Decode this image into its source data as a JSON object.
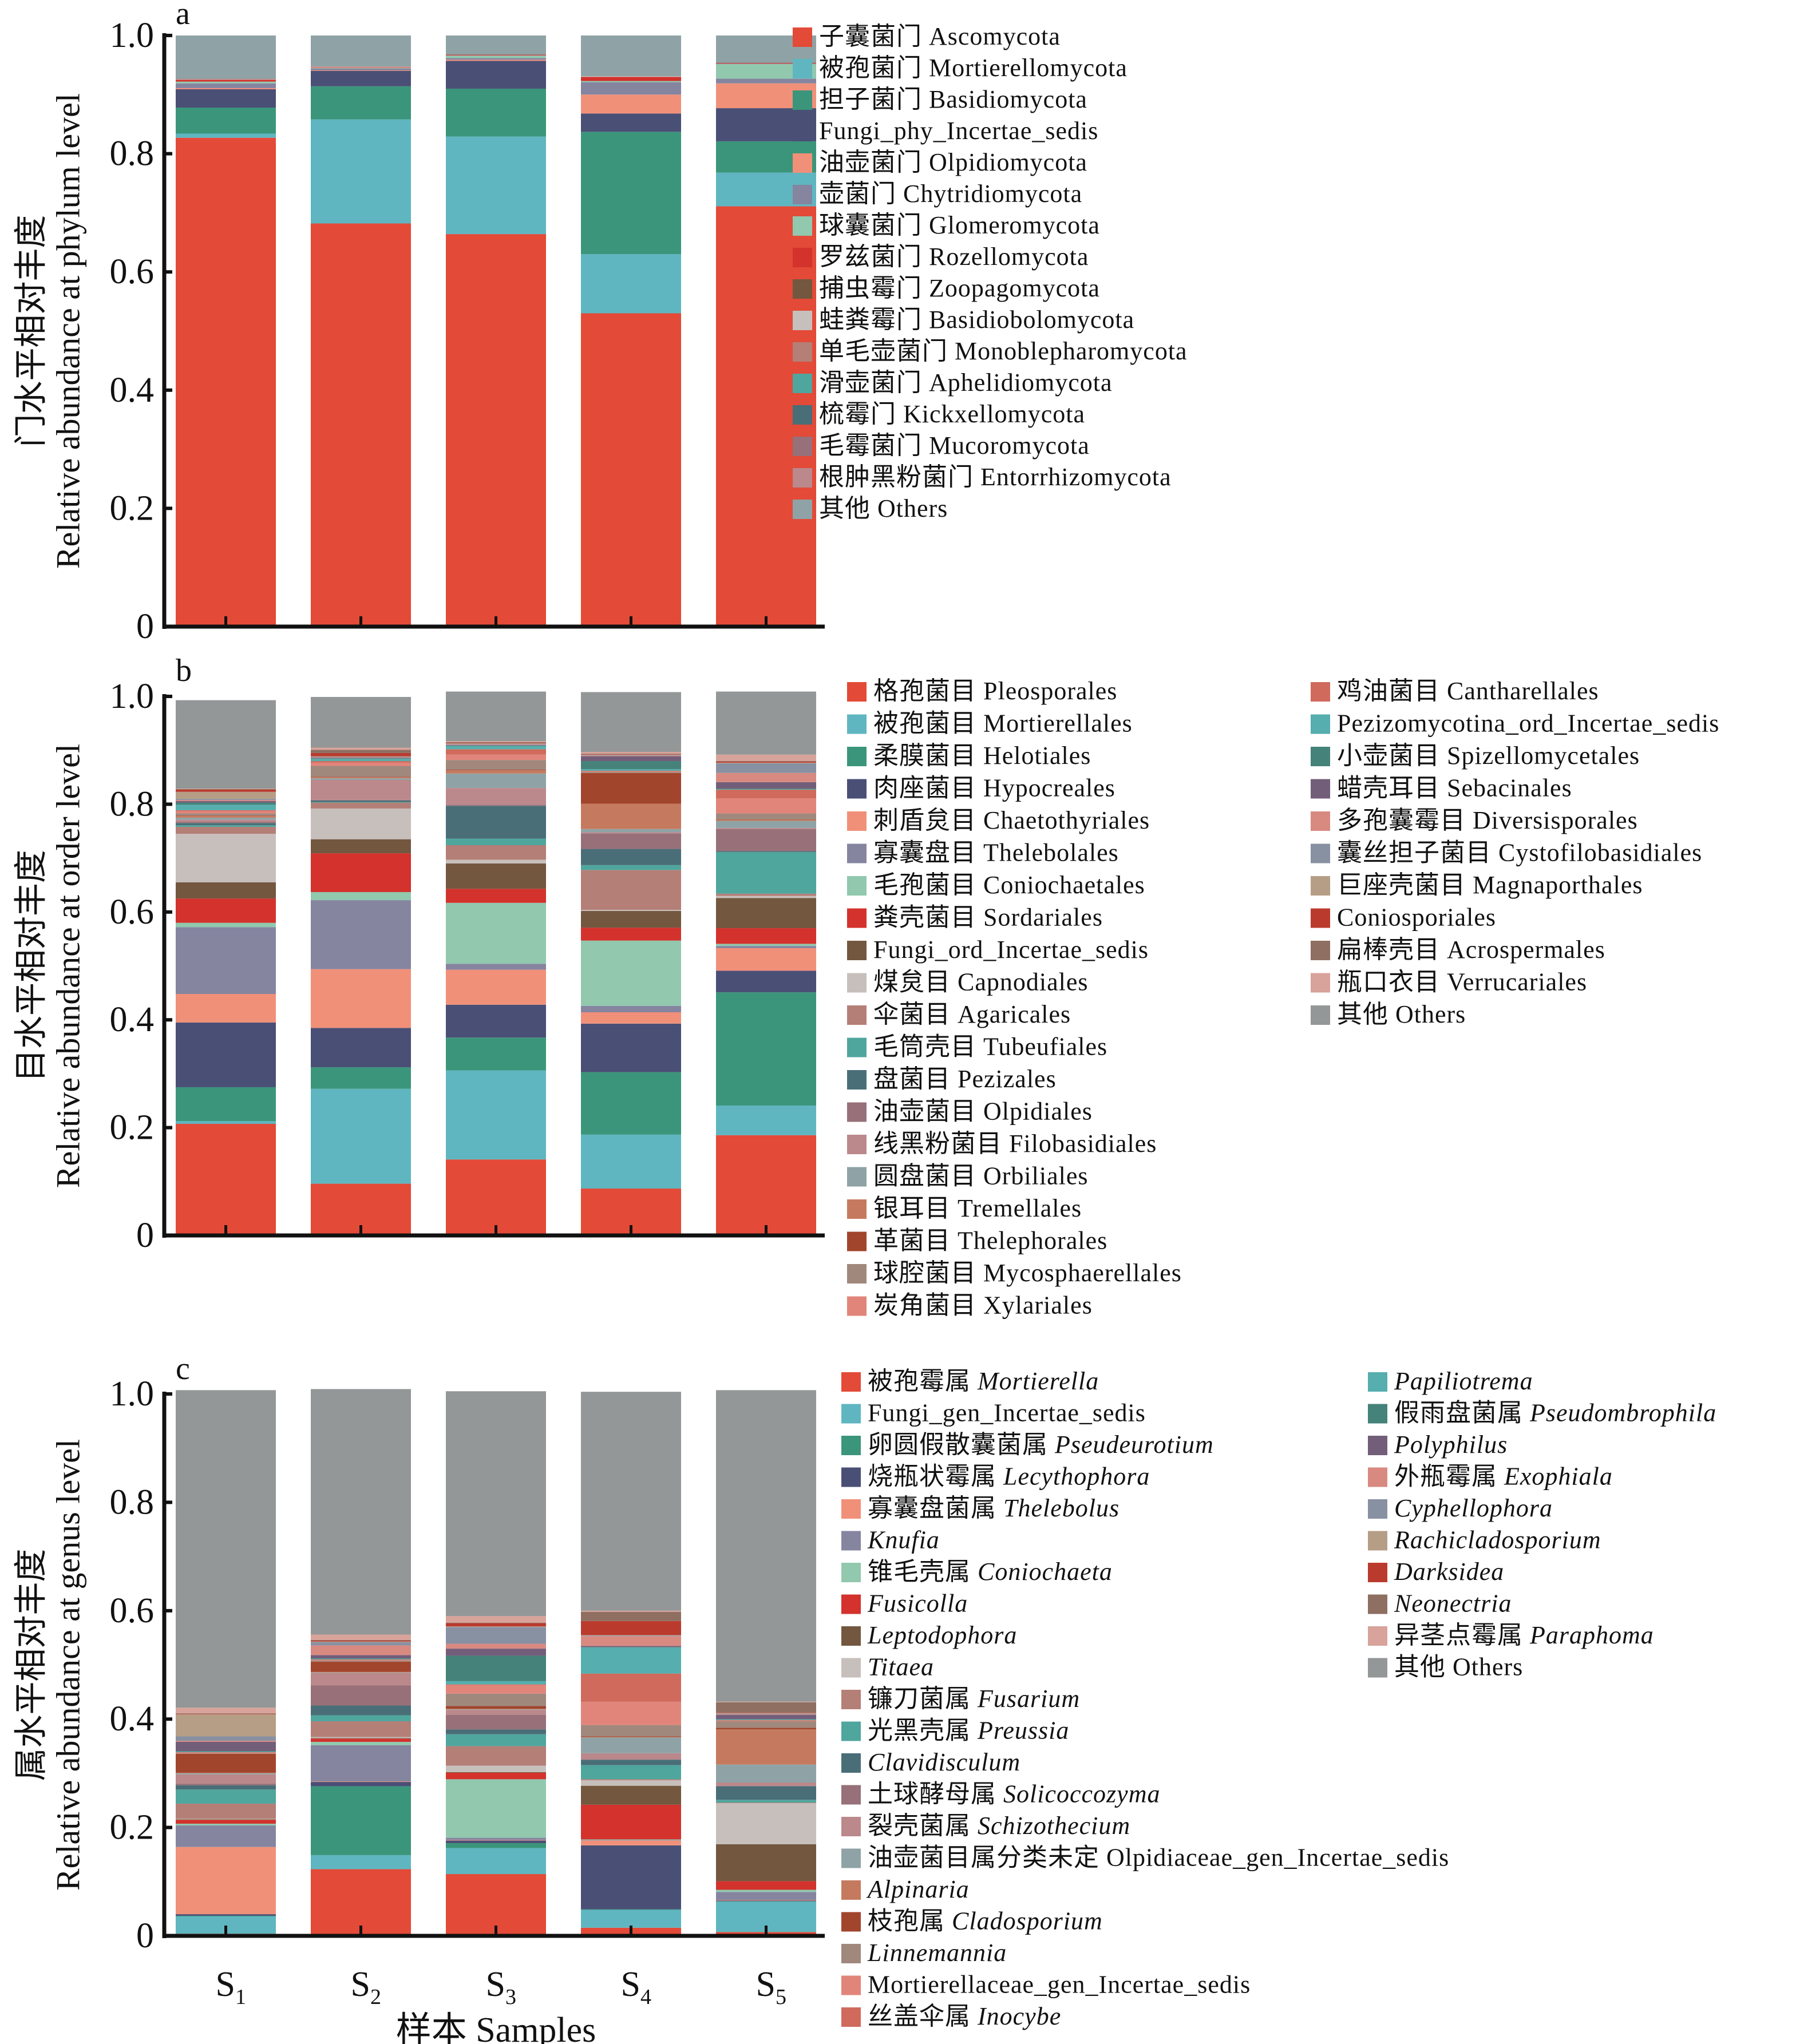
{
  "chart_data": [
    {
      "type": "bar",
      "stacked": true,
      "panel": "a",
      "title": "",
      "xlabel": "",
      "ylabel": [
        "门水平相对丰度",
        "Relative abundance at phylum level"
      ],
      "ylim": [
        0,
        1.0
      ],
      "yticks": [
        "0",
        "0.2",
        "0.4",
        "0.6",
        "0.8",
        "1.0"
      ],
      "categories": [
        "S1",
        "S2",
        "S3",
        "S4",
        "S5"
      ],
      "legend_position": "right",
      "legend_columns": 1,
      "series": [
        {
          "name": "子囊菌门 Ascomycota",
          "color": "#E34A37",
          "values": [
            0.827,
            0.682,
            0.664,
            0.53,
            0.711
          ]
        },
        {
          "name": "被孢菌门 Mortierellomycota",
          "color": "#5FB6C1",
          "values": [
            0.007,
            0.176,
            0.165,
            0.1,
            0.057
          ]
        },
        {
          "name": "担子菌门 Basidiomycota",
          "color": "#3B957A",
          "values": [
            0.044,
            0.056,
            0.081,
            0.207,
            0.053
          ]
        },
        {
          "name": "Fungi_phy_Incertae_sedis",
          "color": "#4A4F76",
          "values": [
            0.031,
            0.026,
            0.047,
            0.031,
            0.056
          ]
        },
        {
          "name": "油壶菌门 Olpidiomycota",
          "color": "#F19079",
          "values": [
            0.002,
            0.001,
            0.002,
            0.032,
            0.042
          ]
        },
        {
          "name": "壶菌门 Chytridiomycota",
          "color": "#8585A0",
          "values": [
            0.008,
            0.003,
            0.003,
            0.021,
            0.008
          ]
        },
        {
          "name": "球囊菌门 Glomeromycota",
          "color": "#91C8AE",
          "values": [
            0.003,
            0.001,
            0.004,
            0.002,
            0.025
          ]
        },
        {
          "name": "罗兹菌门 Rozellomycota",
          "color": "#D3322D",
          "values": [
            0.003,
            0.001,
            0.001,
            0.007,
            0.001
          ]
        },
        {
          "name": "捕虫霉门 Zoopagomycota",
          "color": "#73573F",
          "values": [
            0.0,
            0.0,
            0.0,
            0.0,
            0.0
          ]
        },
        {
          "name": "蛙粪霉门 Basidiobolomycota",
          "color": "#C7BFBB",
          "values": [
            0.001,
            0.001,
            0.0,
            0.001,
            0.0
          ]
        },
        {
          "name": "单毛壶菌门 Monoblepharomycota",
          "color": "#B47F77",
          "values": [
            0.0,
            0.0,
            0.0,
            0.0,
            0.0
          ]
        },
        {
          "name": "滑壶菌门 Aphelidiomycota",
          "color": "#4FA69D",
          "values": [
            0.0,
            0.0,
            0.0,
            0.0,
            0.0
          ]
        },
        {
          "name": "梳霉门 Kickxellomycota",
          "color": "#496E77",
          "values": [
            0.0,
            0.0,
            0.0,
            0.0,
            0.0
          ]
        },
        {
          "name": "毛霉菌门 Mucoromycota",
          "color": "#977079",
          "values": [
            0.001,
            0.001,
            0.001,
            0.0,
            0.001
          ]
        },
        {
          "name": "根肿黑粉菌门 Entorrhizomycota",
          "color": "#BB888B",
          "values": [
            0.0,
            0.0,
            0.0,
            0.0,
            0.0
          ]
        },
        {
          "name": "其他 Others",
          "color": "#8FA3A6",
          "values": [
            0.073,
            0.052,
            0.032,
            0.069,
            0.046
          ]
        }
      ]
    },
    {
      "type": "bar",
      "stacked": true,
      "panel": "b",
      "title": "",
      "xlabel": "",
      "ylabel": [
        "目水平相对丰度",
        "Relative abundance at order level"
      ],
      "ylim": [
        0,
        1.0
      ],
      "yticks": [
        "0",
        "0.2",
        "0.4",
        "0.6",
        "0.8",
        "1.0"
      ],
      "categories": [
        "S1",
        "S2",
        "S3",
        "S4",
        "S5"
      ],
      "legend_position": "right",
      "legend_columns": 2,
      "series": [
        {
          "name": "格孢菌目 Pleosporales",
          "color": "#E34A37",
          "values": [
            0.207,
            0.096,
            0.141,
            0.087,
            0.186
          ]
        },
        {
          "name": "被孢菌目 Mortierellales",
          "color": "#5FB6C1",
          "values": [
            0.005,
            0.176,
            0.165,
            0.1,
            0.055
          ]
        },
        {
          "name": "柔膜菌目 Helotiales",
          "color": "#3B957A",
          "values": [
            0.063,
            0.04,
            0.061,
            0.116,
            0.21
          ]
        },
        {
          "name": "肉座菌目 Hypocreales",
          "color": "#4A4F76",
          "values": [
            0.12,
            0.073,
            0.061,
            0.09,
            0.04
          ]
        },
        {
          "name": "刺盾炱目 Chaetothyriales",
          "color": "#F19079",
          "values": [
            0.053,
            0.109,
            0.065,
            0.021,
            0.042
          ]
        },
        {
          "name": "寡囊盘目 Thelebolales",
          "color": "#8585A0",
          "values": [
            0.124,
            0.128,
            0.011,
            0.012,
            0.004
          ]
        },
        {
          "name": "毛孢菌目 Coniochaetales",
          "color": "#91C8AE",
          "values": [
            0.008,
            0.015,
            0.113,
            0.121,
            0.004
          ]
        },
        {
          "name": "粪壳菌目 Sordariales",
          "color": "#D3322D",
          "values": [
            0.045,
            0.072,
            0.026,
            0.024,
            0.029
          ]
        },
        {
          "name": "Fungi_ord_Incertae_sedis",
          "color": "#73573F",
          "values": [
            0.03,
            0.026,
            0.047,
            0.031,
            0.056
          ]
        },
        {
          "name": "煤炱目 Capnodiales",
          "color": "#C7BFBB",
          "values": [
            0.09,
            0.057,
            0.007,
            0.002,
            0.004
          ]
        },
        {
          "name": "伞菌目 Agaricales",
          "color": "#B47F77",
          "values": [
            0.013,
            0.011,
            0.027,
            0.074,
            0.004
          ]
        },
        {
          "name": "毛筒壳目 Tubeufiales",
          "color": "#4FA69D",
          "values": [
            0.003,
            0.001,
            0.012,
            0.009,
            0.077
          ]
        },
        {
          "name": "盘菌目 Pezizales",
          "color": "#496E77",
          "values": [
            0.004,
            0.003,
            0.061,
            0.03,
            0.002
          ]
        },
        {
          "name": "油壶菌目 Olpidiales",
          "color": "#977079",
          "values": [
            0.002,
            0.001,
            0.002,
            0.029,
            0.041
          ]
        },
        {
          "name": "线黑粉菌目 Filobasidiales",
          "color": "#BB888B",
          "values": [
            0.004,
            0.037,
            0.031,
            0.002,
            0.002
          ]
        },
        {
          "name": "圆盘菌目 Orbiliales",
          "color": "#8FA3A6",
          "values": [
            0.004,
            0.003,
            0.027,
            0.006,
            0.013
          ]
        },
        {
          "name": "银耳目 Tremellales",
          "color": "#C57A5F",
          "values": [
            0.003,
            0.002,
            0.006,
            0.047,
            0.002
          ]
        },
        {
          "name": "革菌目 Thelephorales",
          "color": "#A2452D",
          "values": [
            0.001,
            0.001,
            0.001,
            0.057,
            0.001
          ]
        },
        {
          "name": "球腔菌目 Mycosphaerellales",
          "color": "#A0887D",
          "values": [
            0.004,
            0.02,
            0.018,
            0.002,
            0.011
          ]
        },
        {
          "name": "炭角菌目 Xylariales",
          "color": "#E1857A",
          "values": [
            0.004,
            0.006,
            0.01,
            0.001,
            0.028
          ]
        },
        {
          "name": "鸡油菌目 Cantharellales",
          "color": "#CF6A5C",
          "values": [
            0.002,
            0.003,
            0.01,
            0.001,
            0.016
          ]
        },
        {
          "name": "Pezizomycotina_ord_Incertae_sedis",
          "color": "#56AEAE",
          "values": [
            0.01,
            0.004,
            0.006,
            0.003,
            0.001
          ]
        },
        {
          "name": "小壶菌目 Spizellomycetales",
          "color": "#44827A",
          "values": [
            0.004,
            0.001,
            0.001,
            0.015,
            0.001
          ]
        },
        {
          "name": "蜡壳耳目 Sebacinales",
          "color": "#735E7A",
          "values": [
            0.003,
            0.001,
            0.001,
            0.009,
            0.012
          ]
        },
        {
          "name": "多孢囊霉目 Diversisporales",
          "color": "#D88A81",
          "values": [
            0.002,
            0.001,
            0.001,
            0.001,
            0.017
          ]
        },
        {
          "name": "囊丝担子菌目 Cystofilobasidiales",
          "color": "#8891A2",
          "values": [
            0.002,
            0.001,
            0.001,
            0.001,
            0.018
          ]
        },
        {
          "name": "巨座壳菌目 Magnaporthales",
          "color": "#B69E86",
          "values": [
            0.013,
            0.001,
            0.001,
            0.001,
            0.001
          ]
        },
        {
          "name": "Coniosporiales",
          "color": "#BA3B2E",
          "values": [
            0.004,
            0.006,
            0.001,
            0.001,
            0.002
          ]
        },
        {
          "name": "扁棒壳目 Acrospermales",
          "color": "#8E6F62",
          "values": [
            0.001,
            0.006,
            0.001,
            0.001,
            0.001
          ]
        },
        {
          "name": "瓶口衣目 Verrucariales",
          "color": "#D8A39A",
          "values": [
            0.001,
            0.004,
            0.002,
            0.003,
            0.012
          ]
        },
        {
          "name": "其他 Others",
          "color": "#939797",
          "values": [
            0.164,
            0.094,
            0.092,
            0.111,
            0.117
          ]
        }
      ]
    },
    {
      "type": "bar",
      "stacked": true,
      "panel": "c",
      "title": "",
      "xlabel": "样本 Samples",
      "ylabel": [
        "属水平相对丰度",
        "Relative abundance at genus level"
      ],
      "ylim": [
        0,
        1.0
      ],
      "yticks": [
        "0",
        "0.2",
        "0.4",
        "0.6",
        "0.8",
        "1.0"
      ],
      "categories": [
        "S1",
        "S2",
        "S3",
        "S4",
        "S5"
      ],
      "legend_position": "right",
      "legend_columns": 2,
      "series": [
        {
          "name": "被孢霉属 Mortierella",
          "color": "#E34A37",
          "values": [
            0.004,
            0.123,
            0.114,
            0.015,
            0.007
          ]
        },
        {
          "name": "Fungi_gen_Incertae_sedis",
          "color": "#5FB6C1",
          "values": [
            0.032,
            0.026,
            0.048,
            0.033,
            0.056
          ]
        },
        {
          "name": "卵圆假散囊菌属 Pseudeurotium",
          "color": "#3B957A",
          "values": [
            0.001,
            0.127,
            0.009,
            0.001,
            0.001
          ]
        },
        {
          "name": "烧瓶状霉属 Lecythophora",
          "color": "#4A4F76",
          "values": [
            0.003,
            0.008,
            0.005,
            0.118,
            0.001
          ]
        },
        {
          "name": "寡囊盘菌属 Thelebolus",
          "color": "#F19079",
          "values": [
            0.124,
            0.001,
            0.001,
            0.009,
            0.001
          ]
        },
        {
          "name": "Knufia",
          "color": "#8585A0",
          "values": [
            0.04,
            0.067,
            0.004,
            0.001,
            0.015
          ]
        },
        {
          "name": "锥毛壳属 Coniochaeta",
          "color": "#91C8AE",
          "values": [
            0.003,
            0.006,
            0.108,
            0.001,
            0.004
          ]
        },
        {
          "name": "Fusicolla",
          "color": "#D3322D",
          "values": [
            0.007,
            0.006,
            0.012,
            0.064,
            0.016
          ]
        },
        {
          "name": "Leptodophora",
          "color": "#73573F",
          "values": [
            0.001,
            0.001,
            0.001,
            0.035,
            0.068
          ]
        },
        {
          "name": "Titaea",
          "color": "#C7BFBB",
          "values": [
            0.001,
            0.002,
            0.012,
            0.01,
            0.076
          ]
        },
        {
          "name": "镰刀菌属 Fusarium",
          "color": "#B47F77",
          "values": [
            0.028,
            0.029,
            0.036,
            0.002,
            0.001
          ]
        },
        {
          "name": "光黑壳属 Preussia",
          "color": "#4FA69D",
          "values": [
            0.026,
            0.011,
            0.022,
            0.026,
            0.005
          ]
        },
        {
          "name": "Clavidisculum",
          "color": "#496E77",
          "values": [
            0.008,
            0.018,
            0.009,
            0.01,
            0.025
          ]
        },
        {
          "name": "土球酵母属 Solicoccozyma",
          "color": "#977079",
          "values": [
            0.003,
            0.037,
            0.027,
            0.001,
            0.001
          ]
        },
        {
          "name": "裂壳菌属 Schizothecium",
          "color": "#BB888B",
          "values": [
            0.017,
            0.023,
            0.009,
            0.011,
            0.006
          ]
        },
        {
          "name": "油壶菌目属分类未定 Olpidiaceae_gen_Incertae_sedis",
          "color": "#8FA3A6",
          "values": [
            0.002,
            0.001,
            0.001,
            0.029,
            0.033
          ]
        },
        {
          "name": "Alpinaria",
          "color": "#C57A5F",
          "values": [
            0.001,
            0.001,
            0.001,
            0.001,
            0.065
          ]
        },
        {
          "name": "枝孢属 Cladosporium",
          "color": "#A2452D",
          "values": [
            0.035,
            0.019,
            0.005,
            0.001,
            0.003
          ]
        },
        {
          "name": "Linnemannia",
          "color": "#A0887D",
          "values": [
            0.001,
            0.002,
            0.023,
            0.021,
            0.012
          ]
        },
        {
          "name": "Mortierellaceae_gen_Incertae_sedis",
          "color": "#E1857A",
          "values": [
            0.001,
            0.001,
            0.016,
            0.043,
            0.001
          ]
        },
        {
          "name": "丝盖伞属 Inocybe",
          "color": "#CF6A5C",
          "values": [
            0.001,
            0.001,
            0.001,
            0.052,
            0.001
          ]
        },
        {
          "name": "Papiliotrema",
          "color": "#56AEAE",
          "values": [
            0.001,
            0.001,
            0.006,
            0.048,
            0.001
          ]
        },
        {
          "name": "假雨盘菌属 Pseudombrophila",
          "color": "#44827A",
          "values": [
            0.001,
            0.001,
            0.047,
            0.001,
            0.001
          ]
        },
        {
          "name": "Polyphilus",
          "color": "#735E7A",
          "values": [
            0.017,
            0.006,
            0.013,
            0.002,
            0.008
          ]
        },
        {
          "name": "外瓶霉属 Exophiala",
          "color": "#D88A81",
          "values": [
            0.002,
            0.018,
            0.009,
            0.018,
            0.001
          ]
        },
        {
          "name": "Cyphellophora",
          "color": "#8891A2",
          "values": [
            0.008,
            0.006,
            0.031,
            0.001,
            0.001
          ]
        },
        {
          "name": "Rachicladosporium",
          "color": "#B69E86",
          "values": [
            0.041,
            0.001,
            0.001,
            0.001,
            0.001
          ]
        },
        {
          "name": "Darksidea",
          "color": "#BA3B2E",
          "values": [
            0.001,
            0.002,
            0.006,
            0.026,
            0.001
          ]
        },
        {
          "name": "Neonectria",
          "color": "#8E6F62",
          "values": [
            0.001,
            0.001,
            0.001,
            0.017,
            0.019
          ]
        },
        {
          "name": "异茎点霉属 Paraphoma",
          "color": "#D8A39A",
          "values": [
            0.01,
            0.01,
            0.012,
            0.002,
            0.001
          ]
        },
        {
          "name": "其他 Others",
          "color": "#939797",
          "values": [
            0.586,
            0.453,
            0.415,
            0.404,
            0.575
          ]
        }
      ]
    }
  ],
  "panels": {
    "a": {
      "letter": "a",
      "ylabel_cn": "门水平相对丰度",
      "ylabel_en": "Relative abundance at phylum level"
    },
    "b": {
      "letter": "b",
      "ylabel_cn": "目水平相对丰度",
      "ylabel_en": "Relative abundance at order level"
    },
    "c": {
      "letter": "c",
      "ylabel_cn": "属水平相对丰度",
      "ylabel_en": "Relative abundance at genus level"
    }
  },
  "x_categories": [
    {
      "base": "S",
      "sub": "1"
    },
    {
      "base": "S",
      "sub": "2"
    },
    {
      "base": "S",
      "sub": "3"
    },
    {
      "base": "S",
      "sub": "4"
    },
    {
      "base": "S",
      "sub": "5"
    }
  ],
  "xlabel": "样本 Samples",
  "italic_genera": [
    "Mortierella",
    "Pseudeurotium",
    "Lecythophora",
    "Thelebolus",
    "Knufia",
    "Coniochaeta",
    "Fusicolla",
    "Leptodophora",
    "Titaea",
    "Fusarium",
    "Preussia",
    "Clavidisculum",
    "Solicoccozyma",
    "Schizothecium",
    "Alpinaria",
    "Cladosporium",
    "Linnemannia",
    "Inocybe",
    "Papiliotrema",
    "Pseudombrophila",
    "Polyphilus",
    "Exophiala",
    "Cyphellophora",
    "Rachicladosporium",
    "Darksidea",
    "Neonectria",
    "Paraphoma"
  ]
}
